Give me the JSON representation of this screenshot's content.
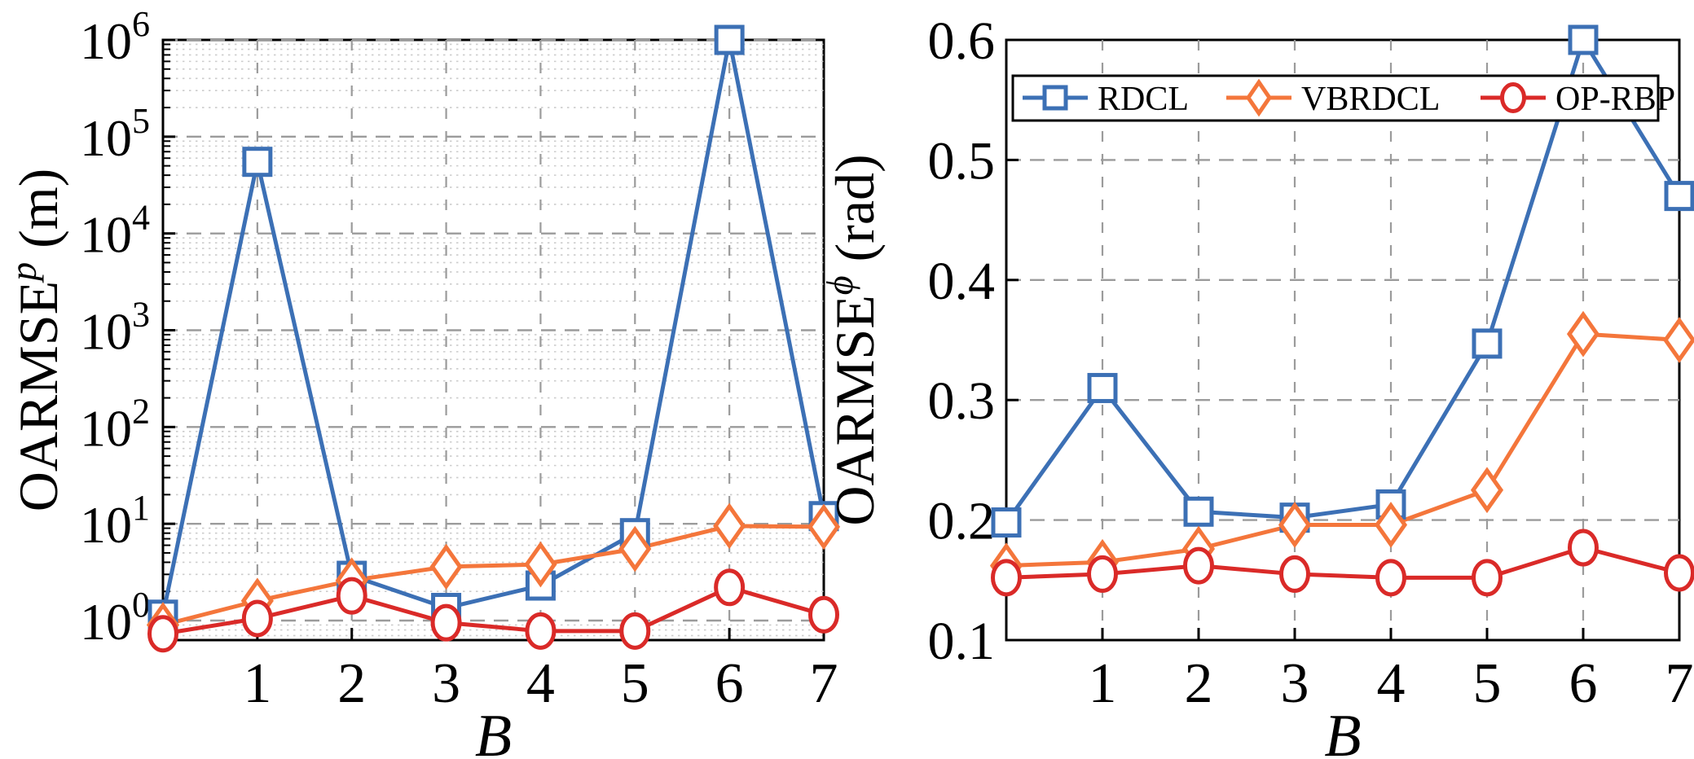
{
  "figure": {
    "background": "#ffffff",
    "description": "Two-panel line chart comparing RDCL, VBRDCL and OP-RBP versus B"
  },
  "legend": {
    "position": "top-inside-right-panel",
    "entries": [
      {
        "label": "RDCL",
        "marker": "square",
        "color": "#3C70B5"
      },
      {
        "label": "VBRDCL",
        "marker": "diamond",
        "color": "#F4763B"
      },
      {
        "label": "OP-RBP",
        "marker": "circle",
        "color": "#DA2A28"
      }
    ]
  },
  "colors": {
    "axis": "#000000",
    "grid_major": "#9b9b9b",
    "grid_minor": "#cccccc",
    "marker_fill": "#ffffff",
    "legend_bg": "#ffffff"
  },
  "chart_data": [
    {
      "id": "left-panel",
      "type": "line",
      "title": "",
      "xlabel": "B",
      "ylabel": {
        "base": "OARMSE",
        "superscript": "p",
        "unit": "(m)"
      },
      "yscale": "log",
      "ylim": [
        0.63,
        1000000
      ],
      "xlim": [
        0,
        7
      ],
      "xticks": [
        "1",
        "2",
        "3",
        "4",
        "5",
        "6",
        "7"
      ],
      "ytick_exponents": [
        "0",
        "1",
        "2",
        "3",
        "4",
        "5",
        "6"
      ],
      "grid": {
        "major": "dashed",
        "minor": "dotted-log-decades"
      },
      "x": [
        0,
        1,
        2,
        3,
        4,
        5,
        6,
        7
      ],
      "series": [
        {
          "name": "RDCL",
          "marker": "square",
          "color": "#3C70B5",
          "values": [
            1.15,
            55000,
            2.9,
            1.35,
            2.3,
            8.0,
            1000000,
            12
          ]
        },
        {
          "name": "VBRDCL",
          "marker": "diamond",
          "color": "#F4763B",
          "values": [
            0.9,
            1.6,
            2.6,
            3.6,
            3.8,
            5.5,
            9.5,
            9.3
          ]
        },
        {
          "name": "OP-RBP",
          "marker": "circle",
          "color": "#DA2A28",
          "values": [
            0.73,
            1.05,
            1.8,
            0.95,
            0.78,
            0.78,
            2.2,
            1.15
          ]
        }
      ]
    },
    {
      "id": "right-panel",
      "type": "line",
      "title": "",
      "xlabel": "B",
      "ylabel": {
        "base": "OARMSE",
        "superscript": "ϕ",
        "unit": "(rad)"
      },
      "yscale": "linear",
      "ylim": [
        0.1,
        0.6
      ],
      "xlim": [
        0,
        7
      ],
      "xticks": [
        "1",
        "2",
        "3",
        "4",
        "5",
        "6",
        "7"
      ],
      "yticks": [
        "0.1",
        "0.2",
        "0.3",
        "0.4",
        "0.5",
        "0.6"
      ],
      "grid": {
        "major": "dashed"
      },
      "has_legend": true,
      "x": [
        0,
        1,
        2,
        3,
        4,
        5,
        6,
        7
      ],
      "series": [
        {
          "name": "RDCL",
          "marker": "square",
          "color": "#3C70B5",
          "values": [
            0.198,
            0.31,
            0.207,
            0.202,
            0.213,
            0.347,
            0.6,
            0.47
          ]
        },
        {
          "name": "VBRDCL",
          "marker": "diamond",
          "color": "#F4763B",
          "values": [
            0.162,
            0.165,
            0.176,
            0.196,
            0.196,
            0.225,
            0.355,
            0.35
          ]
        },
        {
          "name": "OP-RBP",
          "marker": "circle",
          "color": "#DA2A28",
          "values": [
            0.152,
            0.155,
            0.162,
            0.155,
            0.152,
            0.152,
            0.177,
            0.156
          ]
        }
      ]
    }
  ]
}
